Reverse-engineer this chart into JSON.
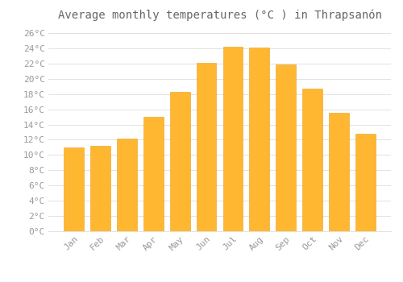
{
  "title": "Average monthly temperatures (°C ) in Thrapsanón",
  "months": [
    "Jan",
    "Feb",
    "Mar",
    "Apr",
    "May",
    "Jun",
    "Jul",
    "Aug",
    "Sep",
    "Oct",
    "Nov",
    "Dec"
  ],
  "values": [
    11.0,
    11.2,
    12.2,
    15.0,
    18.3,
    22.1,
    24.2,
    24.1,
    21.9,
    18.7,
    15.5,
    12.8
  ],
  "bar_color_top": "#FFB732",
  "bar_color_bottom": "#FFCC55",
  "bar_edge_color": "#E8A020",
  "background_color": "#FFFFFF",
  "grid_color": "#DDDDDD",
  "text_color": "#999999",
  "title_color": "#666666",
  "ylim": [
    0,
    27
  ],
  "ytick_step": 2,
  "title_fontsize": 10,
  "tick_fontsize": 8
}
